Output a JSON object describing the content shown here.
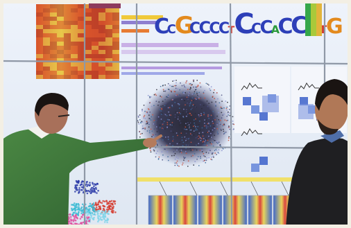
{
  "scene": {
    "logo_letters": [
      "C",
      "C",
      "G",
      "C",
      "C",
      "C",
      "C",
      "T",
      "C",
      "C",
      "C",
      "A",
      "C",
      "C",
      "C",
      "T",
      "G"
    ],
    "colors": {
      "frame": "#f3efe4",
      "wall_bg": "#e8eef8",
      "bezel": "#8f98a6",
      "heatmap_warm": "#d9552b",
      "heatmap_yellow": "#e8c84a",
      "logo_blue": "#2d3fb8",
      "logo_orange": "#e38a1e",
      "logo_green": "#2a9a3c",
      "logo_red": "#d33a2d",
      "sweater_green": "#3f7a3a",
      "sweater_dark": "#1f1f22",
      "skin": "#b47b5c",
      "hair_dark": "#1a1412"
    }
  }
}
